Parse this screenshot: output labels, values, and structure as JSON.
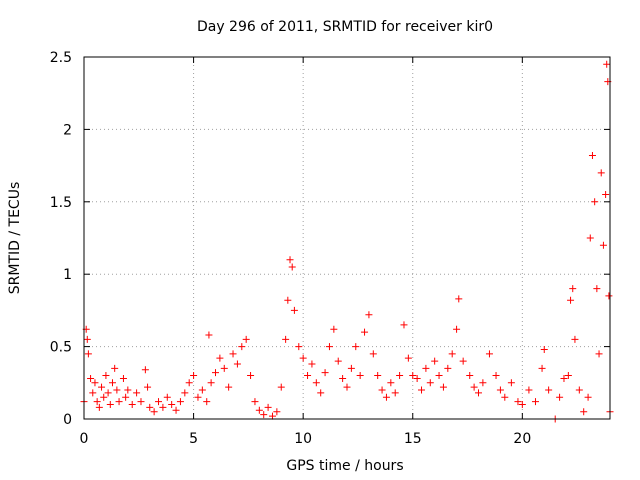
{
  "chart_data": {
    "type": "scatter",
    "title": "Day 296 of 2011, SRMTID for receiver kir0",
    "xlabel": "GPS time / hours",
    "ylabel": "SRMTID / TECUs",
    "xlim": [
      0,
      24
    ],
    "ylim": [
      0,
      2.5
    ],
    "x_ticks": [
      0,
      5,
      10,
      15,
      20
    ],
    "x_tick_labels": [
      "0",
      "5",
      "10",
      "15",
      "20"
    ],
    "y_ticks": [
      0,
      0.5,
      1,
      1.5,
      2,
      2.5
    ],
    "y_tick_labels": [
      "0",
      "0.5",
      "1",
      "1.5",
      "2",
      "2.5"
    ],
    "grid": true,
    "marker": "+",
    "color": "#ff0000",
    "series": [
      {
        "name": "SRMTID",
        "points": [
          [
            0.0,
            0.12
          ],
          [
            0.1,
            0.62
          ],
          [
            0.15,
            0.55
          ],
          [
            0.2,
            0.45
          ],
          [
            0.3,
            0.28
          ],
          [
            0.4,
            0.18
          ],
          [
            0.5,
            0.25
          ],
          [
            0.6,
            0.12
          ],
          [
            0.7,
            0.08
          ],
          [
            0.8,
            0.22
          ],
          [
            0.9,
            0.15
          ],
          [
            1.0,
            0.3
          ],
          [
            1.1,
            0.18
          ],
          [
            1.2,
            0.1
          ],
          [
            1.3,
            0.25
          ],
          [
            1.4,
            0.35
          ],
          [
            1.5,
            0.2
          ],
          [
            1.6,
            0.12
          ],
          [
            1.8,
            0.28
          ],
          [
            1.9,
            0.15
          ],
          [
            2.0,
            0.2
          ],
          [
            2.2,
            0.1
          ],
          [
            2.4,
            0.18
          ],
          [
            2.6,
            0.12
          ],
          [
            2.8,
            0.34
          ],
          [
            2.9,
            0.22
          ],
          [
            3.0,
            0.08
          ],
          [
            3.2,
            0.05
          ],
          [
            3.4,
            0.12
          ],
          [
            3.6,
            0.08
          ],
          [
            3.8,
            0.15
          ],
          [
            4.0,
            0.1
          ],
          [
            4.2,
            0.06
          ],
          [
            4.4,
            0.12
          ],
          [
            4.6,
            0.18
          ],
          [
            4.8,
            0.25
          ],
          [
            5.0,
            0.3
          ],
          [
            5.2,
            0.15
          ],
          [
            5.4,
            0.2
          ],
          [
            5.6,
            0.12
          ],
          [
            5.7,
            0.58
          ],
          [
            5.8,
            0.25
          ],
          [
            6.0,
            0.32
          ],
          [
            6.2,
            0.42
          ],
          [
            6.4,
            0.35
          ],
          [
            6.6,
            0.22
          ],
          [
            6.8,
            0.45
          ],
          [
            7.0,
            0.38
          ],
          [
            7.2,
            0.5
          ],
          [
            7.4,
            0.55
          ],
          [
            7.6,
            0.3
          ],
          [
            7.8,
            0.12
          ],
          [
            8.0,
            0.06
          ],
          [
            8.2,
            0.03
          ],
          [
            8.4,
            0.08
          ],
          [
            8.6,
            0.02
          ],
          [
            8.8,
            0.05
          ],
          [
            9.0,
            0.22
          ],
          [
            9.2,
            0.55
          ],
          [
            9.3,
            0.82
          ],
          [
            9.4,
            1.1
          ],
          [
            9.5,
            1.05
          ],
          [
            9.6,
            0.75
          ],
          [
            9.8,
            0.5
          ],
          [
            10.0,
            0.42
          ],
          [
            10.2,
            0.3
          ],
          [
            10.4,
            0.38
          ],
          [
            10.6,
            0.25
          ],
          [
            10.8,
            0.18
          ],
          [
            11.0,
            0.32
          ],
          [
            11.2,
            0.5
          ],
          [
            11.4,
            0.62
          ],
          [
            11.6,
            0.4
          ],
          [
            11.8,
            0.28
          ],
          [
            12.0,
            0.22
          ],
          [
            12.2,
            0.35
          ],
          [
            12.4,
            0.5
          ],
          [
            12.6,
            0.3
          ],
          [
            12.8,
            0.6
          ],
          [
            13.0,
            0.72
          ],
          [
            13.2,
            0.45
          ],
          [
            13.4,
            0.3
          ],
          [
            13.6,
            0.2
          ],
          [
            13.8,
            0.15
          ],
          [
            14.0,
            0.25
          ],
          [
            14.2,
            0.18
          ],
          [
            14.4,
            0.3
          ],
          [
            14.6,
            0.65
          ],
          [
            14.8,
            0.42
          ],
          [
            15.0,
            0.3
          ],
          [
            15.2,
            0.28
          ],
          [
            15.4,
            0.2
          ],
          [
            15.6,
            0.35
          ],
          [
            15.8,
            0.25
          ],
          [
            16.0,
            0.4
          ],
          [
            16.2,
            0.3
          ],
          [
            16.4,
            0.22
          ],
          [
            16.6,
            0.35
          ],
          [
            16.8,
            0.45
          ],
          [
            17.0,
            0.62
          ],
          [
            17.1,
            0.83
          ],
          [
            17.3,
            0.4
          ],
          [
            17.6,
            0.3
          ],
          [
            17.8,
            0.22
          ],
          [
            18.0,
            0.18
          ],
          [
            18.2,
            0.25
          ],
          [
            18.5,
            0.45
          ],
          [
            18.8,
            0.3
          ],
          [
            19.0,
            0.2
          ],
          [
            19.2,
            0.15
          ],
          [
            19.5,
            0.25
          ],
          [
            19.8,
            0.12
          ],
          [
            20.0,
            0.1
          ],
          [
            20.3,
            0.2
          ],
          [
            20.6,
            0.12
          ],
          [
            20.9,
            0.35
          ],
          [
            21.0,
            0.48
          ],
          [
            21.2,
            0.2
          ],
          [
            21.5,
            0.0
          ],
          [
            21.7,
            0.15
          ],
          [
            21.9,
            0.28
          ],
          [
            22.1,
            0.3
          ],
          [
            22.2,
            0.82
          ],
          [
            22.3,
            0.9
          ],
          [
            22.4,
            0.55
          ],
          [
            22.6,
            0.2
          ],
          [
            22.8,
            0.05
          ],
          [
            23.0,
            0.15
          ],
          [
            23.1,
            1.25
          ],
          [
            23.2,
            1.82
          ],
          [
            23.3,
            1.5
          ],
          [
            23.4,
            0.9
          ],
          [
            23.5,
            0.45
          ],
          [
            23.6,
            1.7
          ],
          [
            23.7,
            1.2
          ],
          [
            23.8,
            1.55
          ],
          [
            23.85,
            2.45
          ],
          [
            23.9,
            2.33
          ],
          [
            23.95,
            0.85
          ],
          [
            24.0,
            0.05
          ]
        ]
      }
    ]
  }
}
